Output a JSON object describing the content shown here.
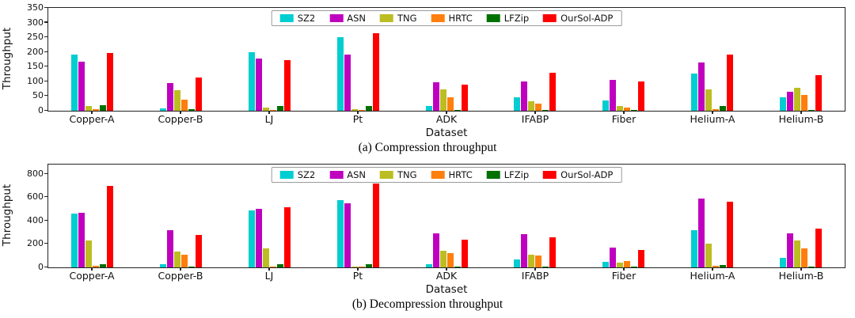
{
  "figure": {
    "captions": [
      "(a) Compression throughput",
      "(b) Decompression throughput"
    ]
  },
  "chart_data": [
    {
      "type": "bar",
      "title": "(a) Compression throughput",
      "xlabel": "Dataset",
      "ylabel": "Throughput",
      "ylim": [
        0,
        350
      ],
      "yticks": [
        0,
        50,
        100,
        150,
        200,
        250,
        300,
        350
      ],
      "grid": false,
      "legend_position": "top-center",
      "categories": [
        "Copper-A",
        "Copper-B",
        "LJ",
        "Pt",
        "ADK",
        "IFABP",
        "Fiber",
        "Helium-A",
        "Helium-B"
      ],
      "series": [
        {
          "name": "SZ2",
          "color": "#00ced1",
          "values": [
            190,
            8,
            198,
            250,
            15,
            47,
            35,
            127,
            45
          ]
        },
        {
          "name": "ASN",
          "color": "#bf00bf",
          "values": [
            168,
            95,
            178,
            190,
            98,
            100,
            104,
            165,
            65
          ]
        },
        {
          "name": "TNG",
          "color": "#bcbd22",
          "values": [
            15,
            70,
            10,
            5,
            72,
            33,
            15,
            72,
            77
          ]
        },
        {
          "name": "HRTC",
          "color": "#ff7f0e",
          "values": [
            5,
            38,
            4,
            3,
            45,
            25,
            10,
            6,
            55
          ]
        },
        {
          "name": "LFZip",
          "color": "#007000",
          "values": [
            20,
            6,
            15,
            15,
            4,
            4,
            4,
            15,
            3
          ]
        },
        {
          "name": "OurSol-ADP",
          "color": "#ff0000",
          "values": [
            196,
            112,
            172,
            265,
            90,
            130,
            100,
            190,
            122
          ]
        }
      ]
    },
    {
      "type": "bar",
      "title": "(b) Decompression throughput",
      "xlabel": "Dataset",
      "ylabel": "Throughput",
      "ylim": [
        0,
        880
      ],
      "yticks": [
        0,
        200,
        400,
        600,
        800
      ],
      "grid": false,
      "legend_position": "top-center",
      "categories": [
        "Copper-A",
        "Copper-B",
        "LJ",
        "Pt",
        "ADK",
        "IFABP",
        "Fiber",
        "Helium-A",
        "Helium-B"
      ],
      "series": [
        {
          "name": "SZ2",
          "color": "#00ced1",
          "values": [
            460,
            25,
            485,
            575,
            30,
            70,
            45,
            320,
            80
          ]
        },
        {
          "name": "ASN",
          "color": "#bf00bf",
          "values": [
            468,
            320,
            500,
            550,
            290,
            285,
            170,
            590,
            290
          ]
        },
        {
          "name": "TNG",
          "color": "#bcbd22",
          "values": [
            230,
            135,
            165,
            10,
            140,
            110,
            40,
            205,
            230
          ]
        },
        {
          "name": "HRTC",
          "color": "#ff7f0e",
          "values": [
            15,
            110,
            10,
            5,
            120,
            100,
            55,
            12,
            160
          ]
        },
        {
          "name": "LFZip",
          "color": "#007000",
          "values": [
            30,
            8,
            25,
            25,
            6,
            6,
            5,
            20,
            6
          ]
        },
        {
          "name": "OurSol-ADP",
          "color": "#ff0000",
          "values": [
            700,
            280,
            515,
            715,
            240,
            255,
            150,
            560,
            330
          ]
        }
      ]
    }
  ]
}
